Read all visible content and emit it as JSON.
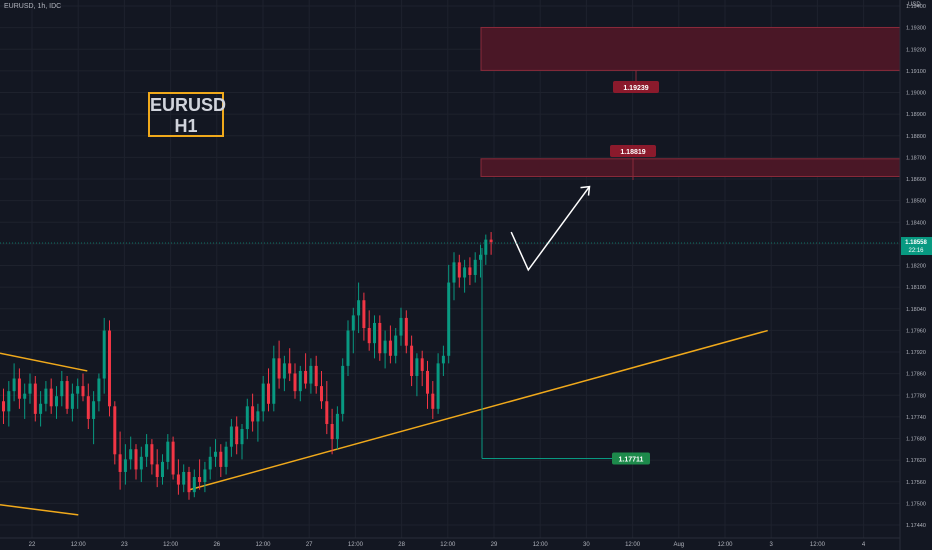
{
  "header": {
    "symbol_line": "EURUSD, 1h, IDC",
    "currency": "USD"
  },
  "pair_label": {
    "line1": "EURUSD",
    "line2": "H1"
  },
  "colors": {
    "background": "#131722",
    "grid": "#1e222d",
    "up": "#089981",
    "down": "#f23645",
    "trendline": "#f0a91b",
    "supply_zone": "#4a1726",
    "supply_edge": "#8b2a3a",
    "tag_red": "#8b1a2c",
    "tag_green": "#1d8a4b",
    "axis_text": "#b2b5be"
  },
  "chart_data": {
    "type": "candlestick",
    "ylim": [
      1.1743,
      1.1951
    ],
    "price_ticks": [
      "1.19400",
      "1.19300",
      "1.19200",
      "1.19100",
      "1.19000",
      "1.18900",
      "1.18800",
      "1.18700",
      "1.18600",
      "1.18500",
      "1.18400",
      "1.18300",
      "1.18200",
      "1.18100",
      "1.18040",
      "1.17960",
      "1.17920",
      "1.17860",
      "1.17780",
      "1.17740",
      "1.17680",
      "1.17620",
      "1.17560",
      "1.17500",
      "1.17440"
    ],
    "time_ticks": [
      "22",
      "12:00",
      "23",
      "12:00",
      "26",
      "12:00",
      "27",
      "12:00",
      "28",
      "12:00",
      "29",
      "12:00",
      "30",
      "12:00",
      "Aug",
      "12:00",
      "3",
      "12:00",
      "4"
    ],
    "current_price": {
      "value": "1.18558",
      "countdown": "22:16"
    },
    "zones": [
      {
        "name": "upper-supply-zone",
        "top": 1.1941,
        "bottom": 1.1924,
        "label": "1.19239",
        "value": 1.19239
      },
      {
        "name": "lower-supply-zone",
        "top": 1.1889,
        "bottom": 1.1882,
        "label": "1.18819",
        "value": 1.18819
      }
    ],
    "low_marker": {
      "label": "1.17711",
      "value": 1.17711
    },
    "trendlines": [
      {
        "name": "rising-support-trendline",
        "points": [
          [
            1.1758,
            0.211
          ],
          [
            1.1821,
            0.853
          ]
        ]
      },
      {
        "name": "old-upper-trendline",
        "points": [
          [
            1.1812,
            0.0
          ],
          [
            1.1805,
            0.097
          ]
        ]
      },
      {
        "name": "old-lower-trendline",
        "points": [
          [
            1.1752,
            0.0
          ],
          [
            1.1748,
            0.087
          ]
        ]
      }
    ],
    "projection": [
      [
        1.186,
        0.568
      ],
      [
        1.1845,
        0.587
      ],
      [
        1.1878,
        0.655
      ]
    ],
    "candles": [
      [
        1.1793,
        1.1798,
        1.1784,
        1.1789
      ],
      [
        1.1789,
        1.1801,
        1.1783,
        1.1797
      ],
      [
        1.1797,
        1.1808,
        1.1793,
        1.1802
      ],
      [
        1.1802,
        1.1806,
        1.179,
        1.1794
      ],
      [
        1.1794,
        1.18,
        1.1786,
        1.1796
      ],
      [
        1.1796,
        1.1804,
        1.1792,
        1.18
      ],
      [
        1.18,
        1.1803,
        1.1785,
        1.1788
      ],
      [
        1.1788,
        1.1797,
        1.1783,
        1.1792
      ],
      [
        1.1792,
        1.1801,
        1.1789,
        1.1798
      ],
      [
        1.1798,
        1.1802,
        1.1788,
        1.1791
      ],
      [
        1.1791,
        1.1799,
        1.1786,
        1.1795
      ],
      [
        1.1795,
        1.1805,
        1.1791,
        1.1801
      ],
      [
        1.1801,
        1.1803,
        1.1788,
        1.179
      ],
      [
        1.179,
        1.18,
        1.1785,
        1.1796
      ],
      [
        1.1796,
        1.1802,
        1.179,
        1.1799
      ],
      [
        1.1799,
        1.1804,
        1.1793,
        1.1795
      ],
      [
        1.1795,
        1.18,
        1.1782,
        1.1786
      ],
      [
        1.1786,
        1.1797,
        1.1776,
        1.1793
      ],
      [
        1.1793,
        1.1804,
        1.1789,
        1.1802
      ],
      [
        1.1802,
        1.1826,
        1.1796,
        1.1821
      ],
      [
        1.1821,
        1.1825,
        1.1787,
        1.1791
      ],
      [
        1.1791,
        1.1793,
        1.1768,
        1.1772
      ],
      [
        1.1772,
        1.1781,
        1.1758,
        1.1765
      ],
      [
        1.1765,
        1.1776,
        1.176,
        1.177
      ],
      [
        1.177,
        1.1779,
        1.1766,
        1.1774
      ],
      [
        1.1774,
        1.1776,
        1.1762,
        1.1766
      ],
      [
        1.1766,
        1.1775,
        1.1761,
        1.1771
      ],
      [
        1.1771,
        1.178,
        1.1767,
        1.1776
      ],
      [
        1.1776,
        1.1778,
        1.1764,
        1.1768
      ],
      [
        1.1768,
        1.1774,
        1.1759,
        1.1763
      ],
      [
        1.1763,
        1.1772,
        1.176,
        1.1769
      ],
      [
        1.1769,
        1.178,
        1.1766,
        1.1777
      ],
      [
        1.1777,
        1.1779,
        1.1762,
        1.1764
      ],
      [
        1.1764,
        1.177,
        1.1756,
        1.176
      ],
      [
        1.176,
        1.1768,
        1.1757,
        1.1765
      ],
      [
        1.1765,
        1.1767,
        1.1754,
        1.1757
      ],
      [
        1.1757,
        1.1766,
        1.1755,
        1.1763
      ],
      [
        1.1763,
        1.177,
        1.1758,
        1.1761
      ],
      [
        1.1761,
        1.1769,
        1.1757,
        1.1766
      ],
      [
        1.1766,
        1.1775,
        1.1762,
        1.1771
      ],
      [
        1.1771,
        1.1778,
        1.1767,
        1.1773
      ],
      [
        1.1773,
        1.1776,
        1.1763,
        1.1767
      ],
      [
        1.1767,
        1.1777,
        1.1764,
        1.1775
      ],
      [
        1.1775,
        1.1786,
        1.1771,
        1.1783
      ],
      [
        1.1783,
        1.1787,
        1.1772,
        1.1776
      ],
      [
        1.1776,
        1.1784,
        1.177,
        1.1782
      ],
      [
        1.1782,
        1.1794,
        1.1778,
        1.1791
      ],
      [
        1.1791,
        1.1796,
        1.1781,
        1.1785
      ],
      [
        1.1785,
        1.1792,
        1.1777,
        1.1789
      ],
      [
        1.1789,
        1.1803,
        1.1785,
        1.18
      ],
      [
        1.18,
        1.1806,
        1.1789,
        1.1792
      ],
      [
        1.1792,
        1.1815,
        1.1789,
        1.181
      ],
      [
        1.181,
        1.1817,
        1.1798,
        1.1802
      ],
      [
        1.1802,
        1.1811,
        1.1797,
        1.1808
      ],
      [
        1.1808,
        1.1814,
        1.1801,
        1.1804
      ],
      [
        1.1804,
        1.1808,
        1.1794,
        1.1797
      ],
      [
        1.1797,
        1.1807,
        1.1793,
        1.1805
      ],
      [
        1.1805,
        1.1812,
        1.1798,
        1.18
      ],
      [
        1.18,
        1.181,
        1.1796,
        1.1807
      ],
      [
        1.1807,
        1.1811,
        1.1796,
        1.1799
      ],
      [
        1.1799,
        1.1805,
        1.179,
        1.1793
      ],
      [
        1.1793,
        1.1801,
        1.178,
        1.1784
      ],
      [
        1.1784,
        1.179,
        1.1772,
        1.1778
      ],
      [
        1.1778,
        1.1791,
        1.1774,
        1.1788
      ],
      [
        1.1788,
        1.181,
        1.1785,
        1.1807
      ],
      [
        1.1807,
        1.1825,
        1.1803,
        1.1821
      ],
      [
        1.1821,
        1.183,
        1.1812,
        1.1827
      ],
      [
        1.1827,
        1.184,
        1.182,
        1.1833
      ],
      [
        1.1833,
        1.1836,
        1.1817,
        1.1822
      ],
      [
        1.1822,
        1.1829,
        1.1813,
        1.1816
      ],
      [
        1.1816,
        1.1827,
        1.181,
        1.1824
      ],
      [
        1.1824,
        1.1827,
        1.1809,
        1.1812
      ],
      [
        1.1812,
        1.1821,
        1.1806,
        1.1817
      ],
      [
        1.1817,
        1.1823,
        1.1808,
        1.1811
      ],
      [
        1.1811,
        1.1822,
        1.1808,
        1.1819
      ],
      [
        1.1819,
        1.183,
        1.1815,
        1.1826
      ],
      [
        1.1826,
        1.1829,
        1.1812,
        1.1815
      ],
      [
        1.1815,
        1.1819,
        1.1799,
        1.1803
      ],
      [
        1.1803,
        1.1812,
        1.1795,
        1.181
      ],
      [
        1.181,
        1.1813,
        1.1799,
        1.1805
      ],
      [
        1.1805,
        1.1809,
        1.179,
        1.1796
      ],
      [
        1.1796,
        1.1801,
        1.1786,
        1.179
      ],
      [
        1.179,
        1.1812,
        1.1788,
        1.1808
      ],
      [
        1.1808,
        1.1815,
        1.1803,
        1.1811
      ],
      [
        1.1811,
        1.1847,
        1.1808,
        1.184
      ],
      [
        1.184,
        1.1852,
        1.1833,
        1.1848
      ],
      [
        1.1848,
        1.1851,
        1.1838,
        1.1842
      ],
      [
        1.1842,
        1.1849,
        1.1836,
        1.1846
      ],
      [
        1.1846,
        1.185,
        1.1839,
        1.1843
      ],
      [
        1.1843,
        1.1852,
        1.184,
        1.1849
      ],
      [
        1.1849,
        1.1855,
        1.1842,
        1.1851
      ],
      [
        1.1851,
        1.1859,
        1.1847,
        1.1857
      ],
      [
        1.1857,
        1.186,
        1.1851,
        1.1856
      ]
    ]
  }
}
